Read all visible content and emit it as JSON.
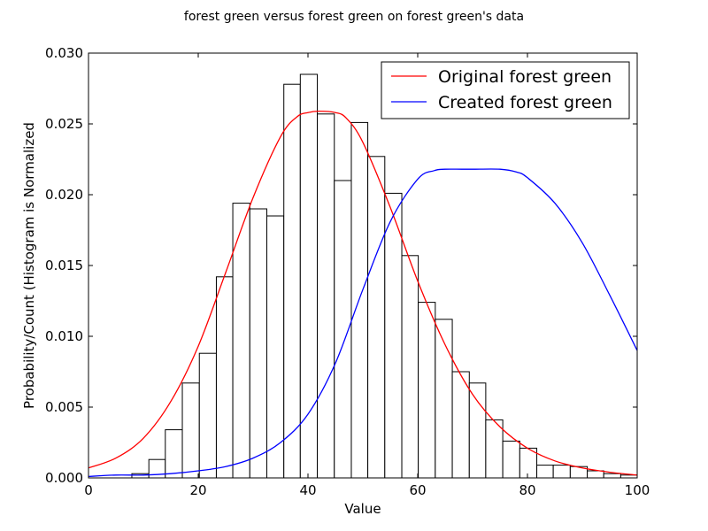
{
  "chart_data": {
    "type": "bar",
    "title": "forest green versus forest green on forest green's data",
    "xlabel": "Value",
    "ylabel": "Probability/Count (Histogram is Normalized",
    "xlim": [
      0,
      100
    ],
    "ylim": [
      0,
      0.03
    ],
    "grid": false,
    "legend_position": "top-right",
    "x_ticks": [
      "0",
      "20",
      "40",
      "60",
      "80",
      "100"
    ],
    "y_ticks": [
      "0.000",
      "0.005",
      "0.010",
      "0.015",
      "0.020",
      "0.025",
      "0.030"
    ],
    "histogram": {
      "bin_edges": [
        7.9,
        11.0,
        14.0,
        17.1,
        20.2,
        23.3,
        26.3,
        29.4,
        32.5,
        35.6,
        38.6,
        41.7,
        44.8,
        47.9,
        50.9,
        54.0,
        57.1,
        60.1,
        63.2,
        66.3,
        69.4,
        72.4,
        75.5,
        78.6,
        81.7,
        84.7,
        87.8,
        90.9,
        93.9,
        97.0,
        100.0
      ],
      "values": [
        0.0003,
        0.0013,
        0.0034,
        0.0067,
        0.0088,
        0.0142,
        0.0194,
        0.019,
        0.0185,
        0.0278,
        0.0285,
        0.0257,
        0.021,
        0.0251,
        0.0227,
        0.0201,
        0.0157,
        0.0124,
        0.0112,
        0.0075,
        0.0067,
        0.0041,
        0.0026,
        0.0021,
        0.0009,
        0.0009,
        0.0008,
        0.0005,
        0.0003,
        0.0002
      ]
    },
    "series": [
      {
        "name": "Original forest green",
        "color": "#ff0000",
        "x": [
          0,
          5,
          10,
          15,
          20,
          25,
          30,
          35,
          38,
          40,
          42,
          45,
          47,
          50,
          55,
          60,
          65,
          70,
          75,
          80,
          85,
          90,
          95,
          100
        ],
        "y": [
          0.0007,
          0.0014,
          0.0028,
          0.0054,
          0.0093,
          0.0145,
          0.0198,
          0.0241,
          0.0255,
          0.0258,
          0.0259,
          0.0258,
          0.0254,
          0.0237,
          0.0191,
          0.0139,
          0.0094,
          0.0059,
          0.0036,
          0.0021,
          0.0012,
          0.0007,
          0.0004,
          0.0002
        ]
      },
      {
        "name": "Created forest green",
        "color": "#0000ff",
        "x": [
          0,
          5,
          10,
          15,
          20,
          25,
          30,
          35,
          40,
          45,
          50,
          55,
          60,
          63,
          65,
          68,
          70,
          75,
          78,
          80,
          85,
          90,
          95,
          100
        ],
        "y": [
          0.0001,
          0.0002,
          0.0002,
          0.0003,
          0.0005,
          0.0008,
          0.0014,
          0.0025,
          0.0045,
          0.0081,
          0.0133,
          0.0181,
          0.0211,
          0.0217,
          0.0218,
          0.0218,
          0.0218,
          0.0218,
          0.0216,
          0.0212,
          0.0194,
          0.0166,
          0.0129,
          0.009
        ]
      }
    ]
  }
}
